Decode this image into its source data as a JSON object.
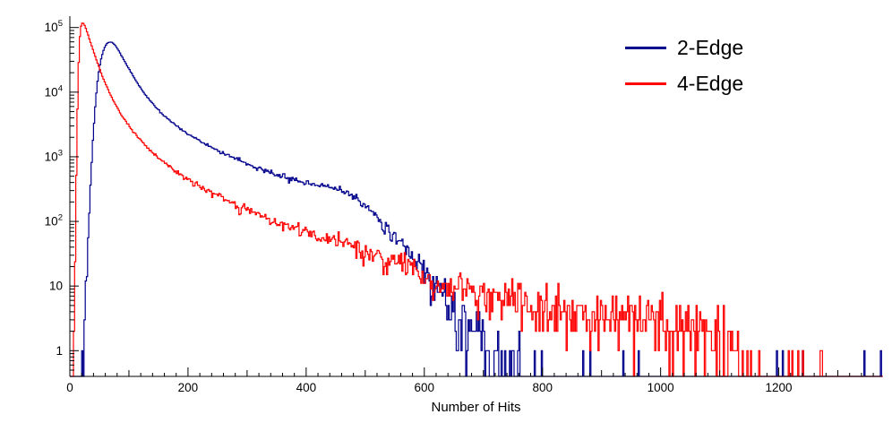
{
  "chart_data": {
    "type": "line",
    "subtype": "step-histogram",
    "title": "",
    "xlabel": "Number of Hits",
    "ylabel": "",
    "x_range": [
      0,
      1375
    ],
    "y_range": [
      0.4,
      150000
    ],
    "y_scale": "log",
    "grid": "off",
    "bin_width": 2,
    "seed": 20240613,
    "x_ticks": {
      "minor_step": 20,
      "medium_step": 100,
      "major_step": 200,
      "labels": [
        "0",
        "200",
        "400",
        "600",
        "800",
        "1000",
        "1200"
      ],
      "label_values": [
        0,
        200,
        400,
        600,
        800,
        1000,
        1200
      ]
    },
    "y_tick_labels": [
      {
        "value": 1,
        "base": "1",
        "exp": ""
      },
      {
        "value": 10,
        "base": "10",
        "exp": ""
      },
      {
        "value": 100,
        "base": "10",
        "exp": "2"
      },
      {
        "value": 1000,
        "base": "10",
        "exp": "3"
      },
      {
        "value": 10000,
        "base": "10",
        "exp": "4"
      },
      {
        "value": 100000,
        "base": "10",
        "exp": "5"
      }
    ],
    "legend": {
      "position": "top-right",
      "entries": [
        {
          "label": "2-Edge",
          "color": "#00008C"
        },
        {
          "label": "4-Edge",
          "color": "#FF0000"
        }
      ]
    },
    "series": [
      {
        "name": "2-Edge",
        "color": "#00008C",
        "anchors": [
          [
            20,
            0.4
          ],
          [
            24,
            1.5
          ],
          [
            28,
            12
          ],
          [
            32,
            90
          ],
          [
            36,
            600
          ],
          [
            40,
            2500
          ],
          [
            44,
            8000
          ],
          [
            48,
            18000
          ],
          [
            52,
            30000
          ],
          [
            56,
            42000
          ],
          [
            60,
            52000
          ],
          [
            64,
            58000
          ],
          [
            68,
            60000
          ],
          [
            72,
            58500
          ],
          [
            76,
            54000
          ],
          [
            80,
            48000
          ],
          [
            84,
            42000
          ],
          [
            88,
            36000
          ],
          [
            92,
            31000
          ],
          [
            96,
            26500
          ],
          [
            100,
            23000
          ],
          [
            110,
            16000
          ],
          [
            120,
            11500
          ],
          [
            130,
            8600
          ],
          [
            140,
            6700
          ],
          [
            150,
            5300
          ],
          [
            160,
            4300
          ],
          [
            170,
            3600
          ],
          [
            180,
            3050
          ],
          [
            190,
            2600
          ],
          [
            200,
            2250
          ],
          [
            220,
            1750
          ],
          [
            240,
            1400
          ],
          [
            260,
            1130
          ],
          [
            280,
            930
          ],
          [
            300,
            780
          ],
          [
            320,
            660
          ],
          [
            340,
            565
          ],
          [
            360,
            495
          ],
          [
            380,
            440
          ],
          [
            400,
            400
          ],
          [
            420,
            370
          ],
          [
            430,
            358
          ],
          [
            440,
            345
          ],
          [
            450,
            328
          ],
          [
            460,
            305
          ],
          [
            470,
            278
          ],
          [
            480,
            246
          ],
          [
            490,
            212
          ],
          [
            500,
            178
          ],
          [
            510,
            146
          ],
          [
            520,
            118
          ],
          [
            530,
            94
          ],
          [
            540,
            74
          ],
          [
            550,
            58
          ],
          [
            560,
            45
          ],
          [
            570,
            35
          ],
          [
            580,
            27
          ],
          [
            590,
            21
          ],
          [
            600,
            16.5
          ],
          [
            610,
            13
          ],
          [
            620,
            10
          ],
          [
            630,
            7.8
          ],
          [
            640,
            6.0
          ],
          [
            650,
            4.6
          ],
          [
            660,
            3.5
          ],
          [
            670,
            2.7
          ],
          [
            680,
            2.1
          ],
          [
            690,
            1.6
          ],
          [
            700,
            1.2
          ],
          [
            710,
            0.8
          ],
          [
            720,
            0.5
          ],
          [
            740,
            0.35
          ],
          [
            770,
            0.12
          ],
          [
            820,
            0.03
          ],
          [
            900,
            0.015
          ],
          [
            1000,
            0.01
          ],
          [
            1100,
            0.02
          ],
          [
            1160,
            0.05
          ],
          [
            1200,
            0.09
          ],
          [
            1230,
            0.05
          ],
          [
            1270,
            0.06
          ],
          [
            1310,
            0.04
          ],
          [
            1350,
            0.07
          ],
          [
            1375,
            0.08
          ]
        ]
      },
      {
        "name": "4-Edge",
        "color": "#FF0000",
        "anchors": [
          [
            6,
            0.5
          ],
          [
            8,
            8
          ],
          [
            10,
            150
          ],
          [
            12,
            2000
          ],
          [
            14,
            15000
          ],
          [
            16,
            55000
          ],
          [
            18,
            95000
          ],
          [
            20,
            115000
          ],
          [
            22,
            118000
          ],
          [
            24,
            113000
          ],
          [
            26,
            103000
          ],
          [
            28,
            92000
          ],
          [
            30,
            81000
          ],
          [
            33,
            67000
          ],
          [
            36,
            55000
          ],
          [
            40,
            43000
          ],
          [
            44,
            33500
          ],
          [
            48,
            26500
          ],
          [
            52,
            21000
          ],
          [
            56,
            17000
          ],
          [
            60,
            13800
          ],
          [
            65,
            10800
          ],
          [
            70,
            8600
          ],
          [
            75,
            7000
          ],
          [
            80,
            5800
          ],
          [
            85,
            4850
          ],
          [
            90,
            4100
          ],
          [
            95,
            3500
          ],
          [
            100,
            3000
          ],
          [
            110,
            2280
          ],
          [
            120,
            1780
          ],
          [
            130,
            1420
          ],
          [
            140,
            1160
          ],
          [
            150,
            960
          ],
          [
            160,
            810
          ],
          [
            170,
            690
          ],
          [
            180,
            590
          ],
          [
            190,
            510
          ],
          [
            200,
            445
          ],
          [
            220,
            345
          ],
          [
            240,
            275
          ],
          [
            260,
            222
          ],
          [
            280,
            182
          ],
          [
            300,
            151
          ],
          [
            320,
            127
          ],
          [
            340,
            108
          ],
          [
            360,
            92
          ],
          [
            380,
            79
          ],
          [
            400,
            68
          ],
          [
            420,
            59
          ],
          [
            440,
            52
          ],
          [
            460,
            46
          ],
          [
            480,
            40
          ],
          [
            500,
            35
          ],
          [
            520,
            31
          ],
          [
            540,
            27
          ],
          [
            560,
            24
          ],
          [
            580,
            21
          ],
          [
            600,
            13
          ],
          [
            620,
            11.5
          ],
          [
            640,
            10.5
          ],
          [
            660,
            9.5
          ],
          [
            680,
            8.8
          ],
          [
            700,
            8.0
          ],
          [
            720,
            7.2
          ],
          [
            740,
            6.6
          ],
          [
            760,
            6.0
          ],
          [
            780,
            5.5
          ],
          [
            800,
            5.0
          ],
          [
            830,
            4.6
          ],
          [
            860,
            4.2
          ],
          [
            890,
            3.9
          ],
          [
            920,
            3.6
          ],
          [
            950,
            3.3
          ],
          [
            980,
            3.1
          ],
          [
            1010,
            2.9
          ],
          [
            1040,
            2.7
          ],
          [
            1070,
            2.5
          ],
          [
            1100,
            2.2
          ],
          [
            1115,
            1.5
          ],
          [
            1125,
            0.9
          ],
          [
            1135,
            0.4
          ],
          [
            1150,
            0.15
          ],
          [
            1170,
            0.08
          ],
          [
            1200,
            0.06
          ],
          [
            1240,
            0.07
          ],
          [
            1280,
            0.04
          ],
          [
            1320,
            0.03
          ],
          [
            1375,
            0.02
          ]
        ]
      }
    ]
  }
}
